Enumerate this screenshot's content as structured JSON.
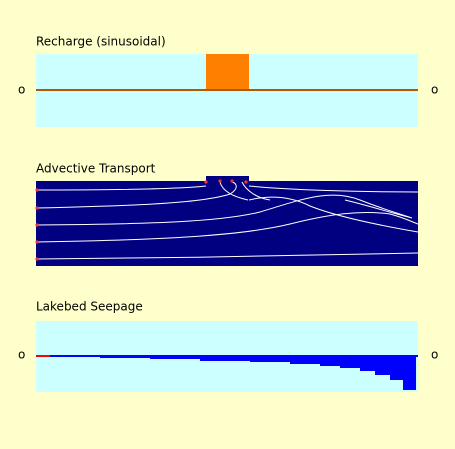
{
  "panels": [
    {
      "title": "Recharge (sinusoidal)",
      "left_label": "o",
      "right_label": "o"
    },
    {
      "title": "Advective Transport"
    },
    {
      "title": "Lakebed Seepage",
      "left_label": "o",
      "right_label": "o"
    }
  ]
}
